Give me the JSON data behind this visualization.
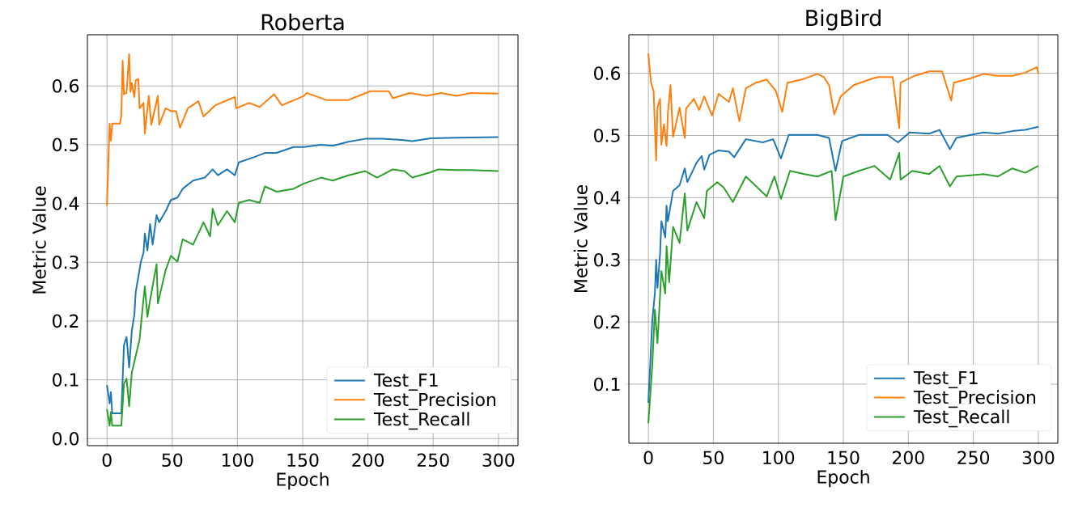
{
  "chart_data": [
    {
      "type": "line",
      "title": "Roberta",
      "xlabel": "Epoch",
      "ylabel": "Metric Value",
      "xlim": [
        -15,
        315
      ],
      "ylim": [
        -0.012,
        0.687
      ],
      "xticks": [
        0,
        50,
        100,
        150,
        200,
        250,
        300
      ],
      "yticks": [
        {
          "value": 0,
          "label": "0.0"
        },
        0.1,
        0.2,
        0.3,
        0.4,
        0.5,
        0.6
      ],
      "grid": true,
      "legend": "bottom right",
      "series": [
        {
          "name": "Test_F1",
          "color": "#1f77b4",
          "x": [
            0,
            2,
            3,
            4,
            11,
            13,
            15,
            17,
            19,
            21,
            22,
            26,
            28,
            29,
            31,
            33,
            35,
            38,
            40,
            45,
            49,
            54,
            58,
            66,
            75,
            81,
            85,
            92,
            98,
            101,
            113,
            121,
            130,
            143,
            151,
            164,
            173,
            185,
            198,
            211,
            226,
            234,
            248,
            268,
            300
          ],
          "values": [
            0.091,
            0.06,
            0.079,
            0.043,
            0.043,
            0.159,
            0.173,
            0.121,
            0.183,
            0.211,
            0.249,
            0.301,
            0.316,
            0.349,
            0.32,
            0.365,
            0.33,
            0.38,
            0.368,
            0.387,
            0.406,
            0.41,
            0.425,
            0.439,
            0.444,
            0.458,
            0.448,
            0.458,
            0.448,
            0.47,
            0.479,
            0.486,
            0.486,
            0.496,
            0.496,
            0.5,
            0.498,
            0.505,
            0.51,
            0.51,
            0.508,
            0.506,
            0.511,
            0.512,
            0.513
          ]
        },
        {
          "name": "Test_Precision",
          "color": "#ff7f0e",
          "x": [
            0,
            2,
            3,
            4,
            10,
            11,
            12,
            13,
            15,
            17,
            18,
            19,
            21,
            22,
            24,
            25,
            28,
            29,
            32,
            34,
            39,
            40,
            45,
            49,
            53,
            56,
            62,
            70,
            74,
            83,
            98,
            99,
            109,
            117,
            128,
            134,
            151,
            153,
            168,
            185,
            202,
            216,
            219,
            232,
            245,
            256,
            268,
            279,
            300
          ],
          "values": [
            0.396,
            0.536,
            0.507,
            0.536,
            0.536,
            0.55,
            0.643,
            0.586,
            0.588,
            0.654,
            0.59,
            0.605,
            0.581,
            0.609,
            0.612,
            0.562,
            0.571,
            0.519,
            0.583,
            0.534,
            0.583,
            0.534,
            0.562,
            0.557,
            0.557,
            0.529,
            0.562,
            0.574,
            0.548,
            0.567,
            0.581,
            0.562,
            0.571,
            0.564,
            0.586,
            0.567,
            0.583,
            0.588,
            0.576,
            0.576,
            0.591,
            0.591,
            0.579,
            0.588,
            0.583,
            0.588,
            0.583,
            0.588,
            0.587
          ]
        },
        {
          "name": "Test_Recall",
          "color": "#2ca02c",
          "x": [
            0,
            2,
            3,
            4,
            11,
            13,
            15,
            17,
            19,
            21,
            25,
            27,
            29,
            31,
            33,
            38,
            39,
            45,
            49,
            54,
            58,
            66,
            74,
            79,
            81,
            85,
            92,
            98,
            101,
            109,
            117,
            121,
            130,
            143,
            151,
            164,
            173,
            185,
            198,
            207,
            219,
            228,
            234,
            248,
            254,
            268,
            279,
            300
          ],
          "values": [
            0.05,
            0.022,
            0.045,
            0.022,
            0.022,
            0.093,
            0.102,
            0.055,
            0.112,
            0.131,
            0.169,
            0.216,
            0.259,
            0.207,
            0.235,
            0.297,
            0.23,
            0.287,
            0.311,
            0.301,
            0.339,
            0.33,
            0.368,
            0.344,
            0.391,
            0.363,
            0.387,
            0.368,
            0.401,
            0.406,
            0.401,
            0.429,
            0.42,
            0.425,
            0.434,
            0.444,
            0.439,
            0.448,
            0.455,
            0.444,
            0.458,
            0.455,
            0.444,
            0.453,
            0.458,
            0.457,
            0.457,
            0.455
          ]
        }
      ]
    },
    {
      "type": "line",
      "title": "BigBird",
      "xlabel": "Epoch",
      "ylabel": "Metric Value",
      "xlim": [
        -15,
        315
      ],
      "ylim": [
        0.005,
        0.662
      ],
      "xticks": [
        0,
        50,
        100,
        150,
        200,
        250,
        300
      ],
      "yticks": [
        0.1,
        0.2,
        0.3,
        0.4,
        0.5,
        0.6
      ],
      "grid": true,
      "legend": "bottom right",
      "series": [
        {
          "name": "Test_F1",
          "color": "#1f77b4",
          "x": [
            0,
            3,
            5,
            6,
            7,
            9,
            10,
            13,
            14,
            15,
            19,
            24,
            28,
            30,
            37,
            41,
            43,
            47,
            54,
            62,
            66,
            75,
            88,
            96,
            102,
            108,
            120,
            130,
            139,
            144,
            149,
            162,
            184,
            192,
            201,
            216,
            224,
            232,
            237,
            248,
            258,
            269,
            280,
            290,
            300
          ],
          "values": [
            0.07,
            0.202,
            0.246,
            0.3,
            0.255,
            0.309,
            0.362,
            0.336,
            0.387,
            0.362,
            0.411,
            0.42,
            0.447,
            0.425,
            0.456,
            0.467,
            0.445,
            0.469,
            0.476,
            0.474,
            0.465,
            0.494,
            0.489,
            0.494,
            0.463,
            0.501,
            0.501,
            0.501,
            0.496,
            0.443,
            0.491,
            0.501,
            0.501,
            0.489,
            0.505,
            0.503,
            0.509,
            0.478,
            0.496,
            0.501,
            0.505,
            0.503,
            0.507,
            0.509,
            0.514
          ]
        },
        {
          "name": "Test_Precision",
          "color": "#ff7f0e",
          "x": [
            0,
            2,
            4,
            6,
            7,
            9,
            10,
            12,
            14,
            15,
            17,
            19,
            24,
            28,
            29,
            35,
            39,
            43,
            49,
            54,
            62,
            65,
            70,
            75,
            83,
            91,
            98,
            103,
            107,
            118,
            130,
            135,
            139,
            143,
            148,
            158,
            173,
            177,
            188,
            193,
            194,
            205,
            216,
            226,
            233,
            235,
            248,
            258,
            269,
            280,
            290,
            299,
            300
          ],
          "values": [
            0.632,
            0.585,
            0.572,
            0.46,
            0.545,
            0.559,
            0.485,
            0.518,
            0.483,
            0.536,
            0.581,
            0.498,
            0.545,
            0.496,
            0.543,
            0.559,
            0.541,
            0.563,
            0.532,
            0.567,
            0.554,
            0.576,
            0.523,
            0.576,
            0.585,
            0.59,
            0.572,
            0.538,
            0.585,
            0.59,
            0.599,
            0.594,
            0.581,
            0.534,
            0.563,
            0.581,
            0.592,
            0.594,
            0.594,
            0.512,
            0.585,
            0.596,
            0.603,
            0.603,
            0.556,
            0.585,
            0.592,
            0.599,
            0.596,
            0.596,
            0.601,
            0.61,
            0.599
          ]
        },
        {
          "name": "Test_Recall",
          "color": "#2ca02c",
          "x": [
            0,
            3,
            5,
            7,
            10,
            13,
            14,
            16,
            19,
            24,
            28,
            30,
            37,
            43,
            45,
            53,
            58,
            65,
            75,
            84,
            91,
            97,
            102,
            109,
            120,
            130,
            141,
            144,
            150,
            162,
            174,
            186,
            193,
            194,
            203,
            216,
            224,
            232,
            237,
            248,
            258,
            269,
            280,
            290,
            300
          ],
          "values": [
            0.037,
            0.13,
            0.22,
            0.166,
            0.282,
            0.246,
            0.322,
            0.264,
            0.353,
            0.327,
            0.407,
            0.347,
            0.393,
            0.367,
            0.411,
            0.425,
            0.416,
            0.393,
            0.434,
            0.416,
            0.402,
            0.434,
            0.398,
            0.443,
            0.438,
            0.434,
            0.443,
            0.364,
            0.434,
            0.443,
            0.451,
            0.429,
            0.472,
            0.429,
            0.443,
            0.438,
            0.451,
            0.418,
            0.434,
            0.436,
            0.438,
            0.434,
            0.447,
            0.44,
            0.451
          ]
        }
      ]
    }
  ]
}
